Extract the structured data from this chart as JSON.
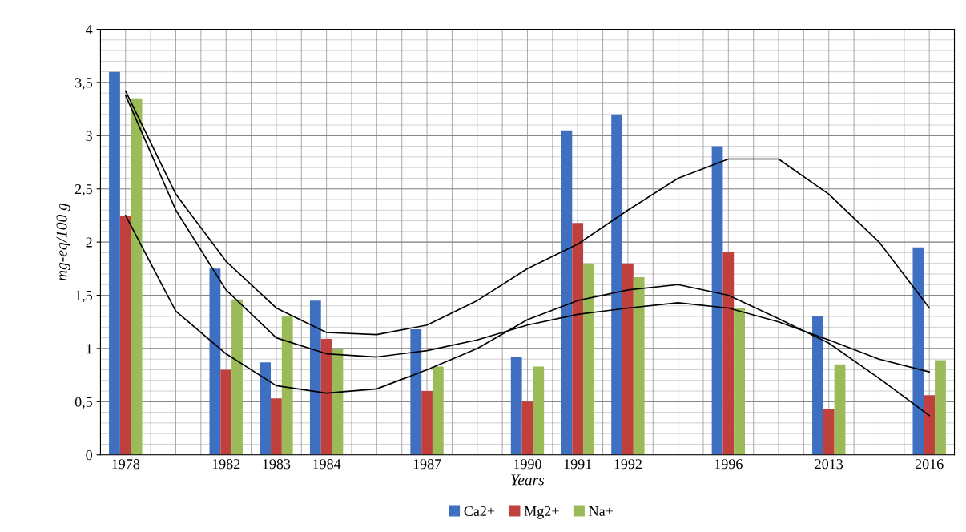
{
  "chart_data": {
    "type": "bar",
    "xlabel": "Years",
    "ylabel": "mg-eq/100 g",
    "categories": [
      "1978",
      null,
      "1982",
      "1983",
      "1984",
      null,
      "1987",
      null,
      "1990",
      "1991",
      "1992",
      null,
      "1996",
      null,
      "2013",
      null,
      "2016"
    ],
    "series": [
      {
        "name": "Ca2+",
        "color": "#3f6fc0",
        "values": [
          3.6,
          null,
          1.75,
          0.87,
          1.45,
          null,
          1.18,
          null,
          0.92,
          3.05,
          3.2,
          null,
          2.9,
          null,
          1.3,
          null,
          1.95
        ]
      },
      {
        "name": "Mg2+",
        "color": "#c0403d",
        "values": [
          2.25,
          null,
          0.8,
          0.53,
          1.09,
          null,
          0.6,
          null,
          0.5,
          2.18,
          1.8,
          null,
          1.91,
          null,
          0.43,
          null,
          0.56
        ]
      },
      {
        "name": "Na+",
        "color": "#9bbb59",
        "values": [
          3.35,
          null,
          1.46,
          1.3,
          1.0,
          null,
          0.83,
          null,
          0.83,
          1.8,
          1.67,
          null,
          1.38,
          null,
          0.85,
          null,
          0.89
        ]
      },
      {
        "type": "line",
        "color": "#000000",
        "values": [
          3.42,
          2.45,
          1.82,
          1.38,
          1.15,
          1.13,
          1.22,
          1.45,
          1.75,
          1.98,
          2.3,
          2.6,
          2.78,
          2.78,
          2.45,
          2.0,
          1.38
        ]
      },
      {
        "type": "line",
        "color": "#000000",
        "values": [
          3.38,
          2.3,
          1.55,
          1.1,
          0.95,
          0.92,
          0.98,
          1.08,
          1.22,
          1.32,
          1.38,
          1.43,
          1.38,
          1.25,
          1.08,
          0.9,
          0.78
        ]
      },
      {
        "type": "line",
        "color": "#000000",
        "values": [
          2.25,
          1.35,
          0.95,
          0.65,
          0.58,
          0.62,
          0.8,
          1.0,
          1.27,
          1.45,
          1.55,
          1.6,
          1.5,
          1.28,
          1.05,
          0.72,
          0.37
        ]
      }
    ],
    "ylim": [
      0,
      4
    ],
    "yticks": [
      0,
      {
        "value": 0.5,
        "label": "0,5"
      },
      1,
      {
        "value": 1.5,
        "label": "1,5"
      },
      2,
      {
        "value": 2.5,
        "label": "2,5"
      },
      3,
      {
        "value": 3.5,
        "label": "3,5"
      },
      4
    ],
    "grid": true,
    "legend": "bottom"
  }
}
